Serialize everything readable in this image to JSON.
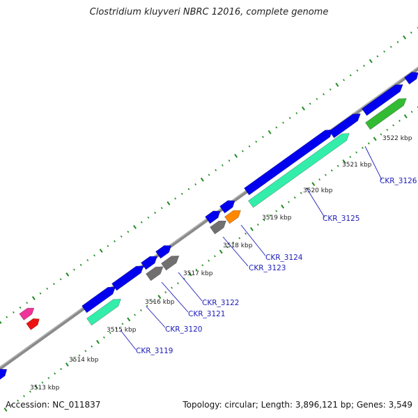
{
  "title": "Clostridium kluyveri NBRC 12016, complete genome",
  "footer": {
    "accession": "Accession: NC_011837",
    "summary": "Topology: circular; Length: 3,896,121 bp; Genes: 3,549"
  },
  "colors": {
    "backbone": "#808080",
    "ticks": "#1f8a1f",
    "cds_forward": "#0000ee",
    "pseudo_magenta": "#ee3399",
    "red": "#ee1111",
    "rrna_mint": "#33eeaa",
    "trna_gray": "#707070",
    "orange": "#ff8800",
    "green": "#33bb33",
    "label": "#1a1ab8"
  },
  "scale": {
    "tick_labels": [
      "3513 kbp",
      "3514 kbp",
      "3515 kbp",
      "3516 kbp",
      "3517 kbp",
      "3518 kbp",
      "3519 kbp",
      "3520 kbp",
      "3521 kbp",
      "3522 kbp"
    ]
  },
  "genes": [
    {
      "locus": "CKR_3119"
    },
    {
      "locus": "CKR_3120"
    },
    {
      "locus": "CKR_3121"
    },
    {
      "locus": "CKR_3122"
    },
    {
      "locus": "CKR_3123"
    },
    {
      "locus": "CKR_3124"
    },
    {
      "locus": "CKR_3125"
    },
    {
      "locus": "CKR_3126"
    }
  ]
}
